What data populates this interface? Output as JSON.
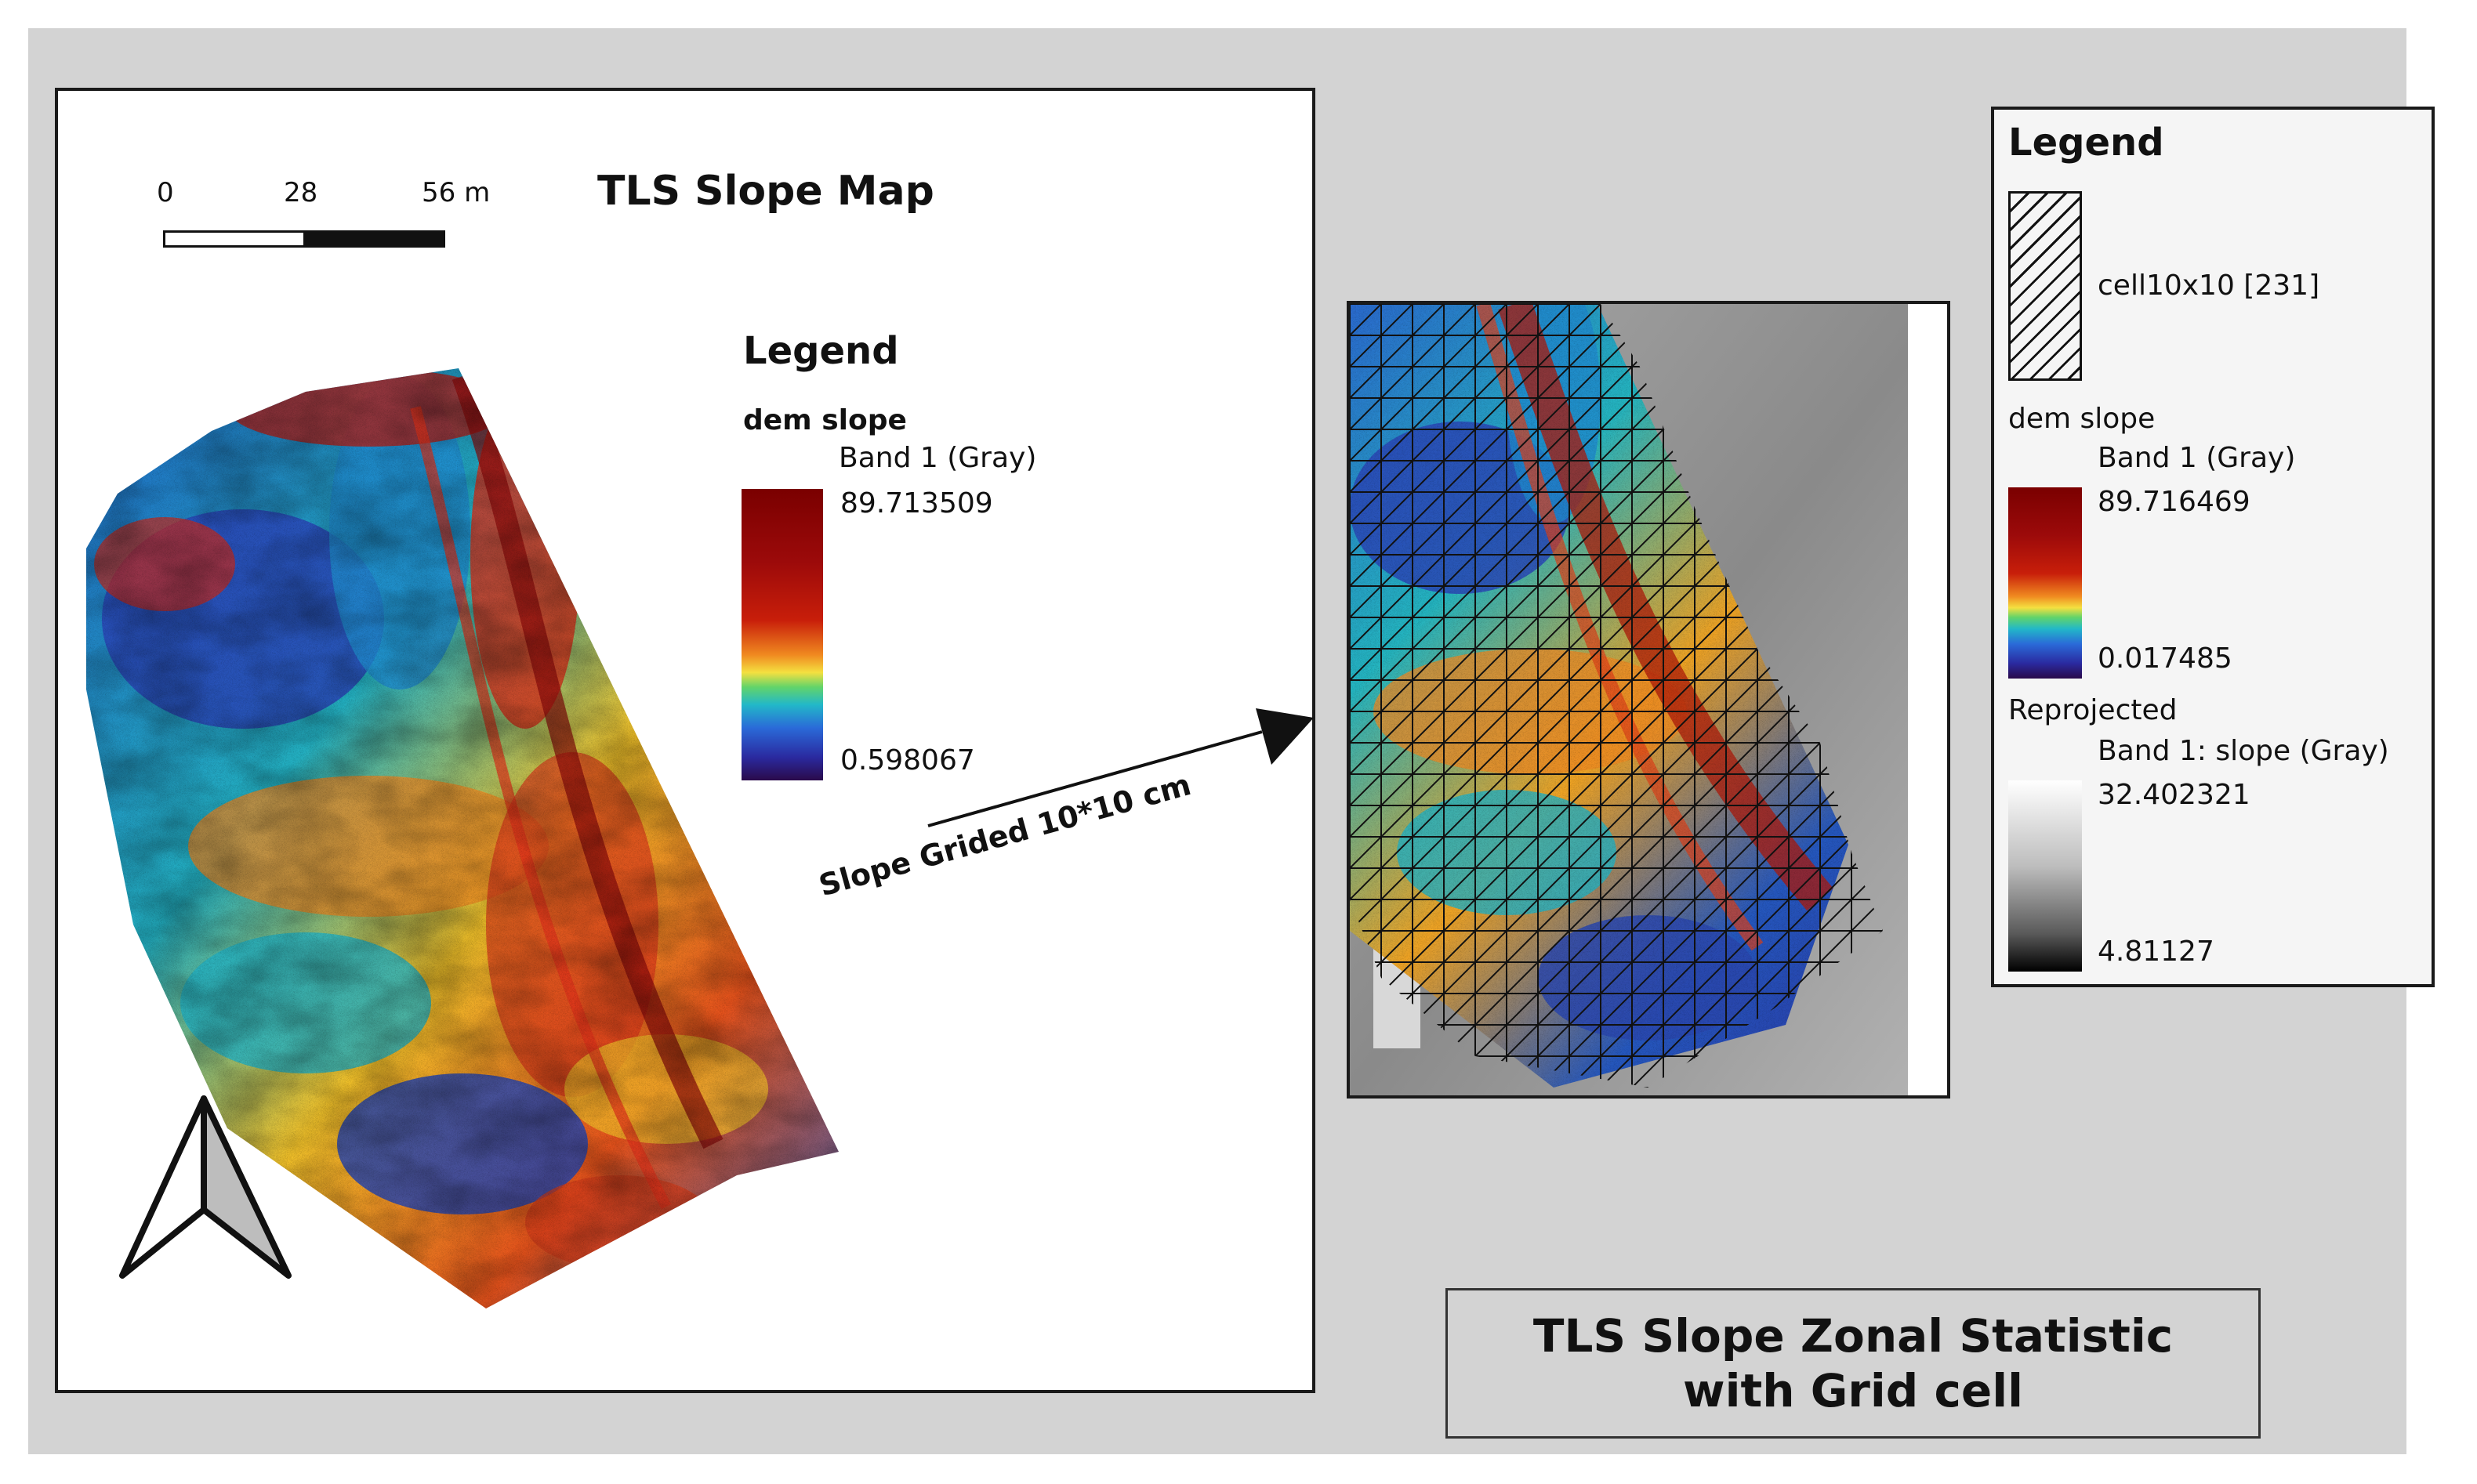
{
  "colors": {
    "page_background": "#d3d3d3",
    "map_frame": "#1a1a1a",
    "ramp_top": "#7a0000",
    "ramp_bottom": "#2a0a4a"
  },
  "main_map": {
    "title": "TLS Slope Map",
    "scale_bar": {
      "labels": [
        "0",
        "28",
        "56 m"
      ]
    },
    "legend": {
      "heading": "Legend",
      "layer_name": "dem slope",
      "band_label": "Band 1 (Gray)",
      "max_value": "89.713509",
      "min_value": "0.598067"
    },
    "north_arrow_icon": "north-arrow-icon"
  },
  "arrow": {
    "label": "Slope Grided 10*10 cm"
  },
  "zonal_legend": {
    "heading": "Legend",
    "grid_layer_label": "cell10x10 [231]",
    "slope_layer_name": "dem slope",
    "slope_band_label": "Band 1 (Gray)",
    "slope_max": "89.716469",
    "slope_min": "0.017485",
    "reprojected_name": "Reprojected",
    "reprojected_band_label": "Band 1: slope (Gray)",
    "reprojected_max": "32.402321",
    "reprojected_min": "4.81127"
  },
  "figure_title": {
    "line1": "TLS Slope Zonal Statistic",
    "line2": "with Grid cell"
  }
}
